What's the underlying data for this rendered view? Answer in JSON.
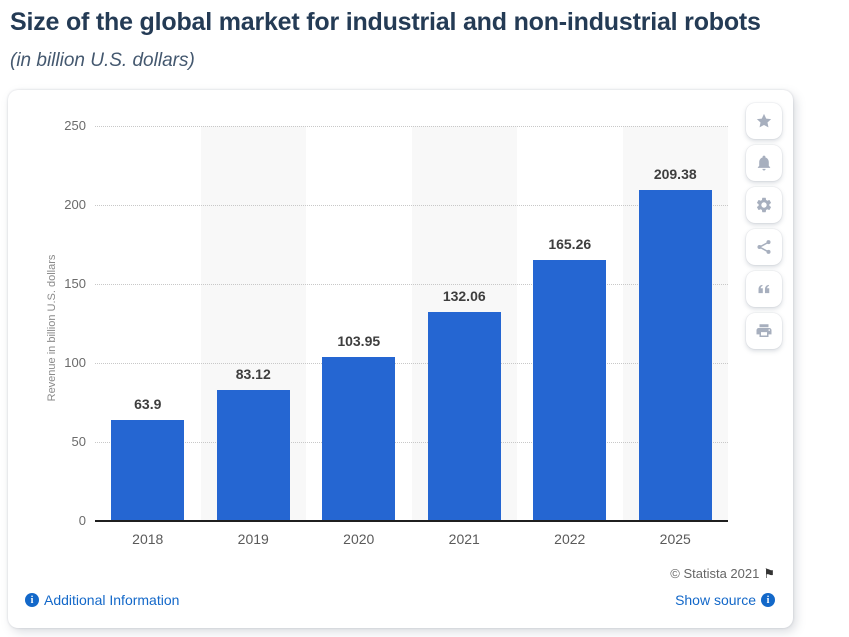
{
  "header": {
    "title": "Size of the global market for industrial and non-industrial robots",
    "subtitle": "(in billion U.S. dollars)"
  },
  "chart_data": {
    "type": "bar",
    "title": "Size of the global market for industrial and non-industrial robots",
    "subtitle": "(in billion U.S. dollars)",
    "categories": [
      "2018",
      "2019",
      "2020",
      "2021",
      "2022",
      "2025"
    ],
    "values": [
      63.9,
      83.12,
      103.95,
      132.06,
      165.26,
      209.38
    ],
    "value_labels": [
      "63.9",
      "83.12",
      "103.95",
      "132.06",
      "165.26",
      "209.38"
    ],
    "xlabel": "",
    "ylabel": "Revenue in billion U.S. dollars",
    "ylim": [
      0,
      250
    ],
    "yticks": [
      0,
      50,
      100,
      150,
      200,
      250
    ],
    "grid": "horizontal-dotted",
    "legend": "none",
    "bar_color": "#2566d2",
    "column_stripe_color": "#f8f8f8",
    "striped_columns": [
      1,
      3,
      5
    ]
  },
  "toolbar": {
    "icons": [
      "star",
      "bell",
      "gear",
      "share",
      "quote",
      "printer"
    ]
  },
  "footer": {
    "copyright": "© Statista 2021",
    "flag_icon": "⚑",
    "additional_info_label": "Additional Information",
    "show_source_label": "Show source",
    "info_icon": "i"
  },
  "colors": {
    "title_text": "#243b55",
    "subtitle_text": "#44586f",
    "link": "#1368c9",
    "bar": "#2566d2",
    "axis_line": "#1f1f1f",
    "tick_text": "#6b6b6b",
    "value_label_text": "#3e3e3e",
    "toolbar_icon": "#a7afbe",
    "credit_text": "#666666"
  }
}
